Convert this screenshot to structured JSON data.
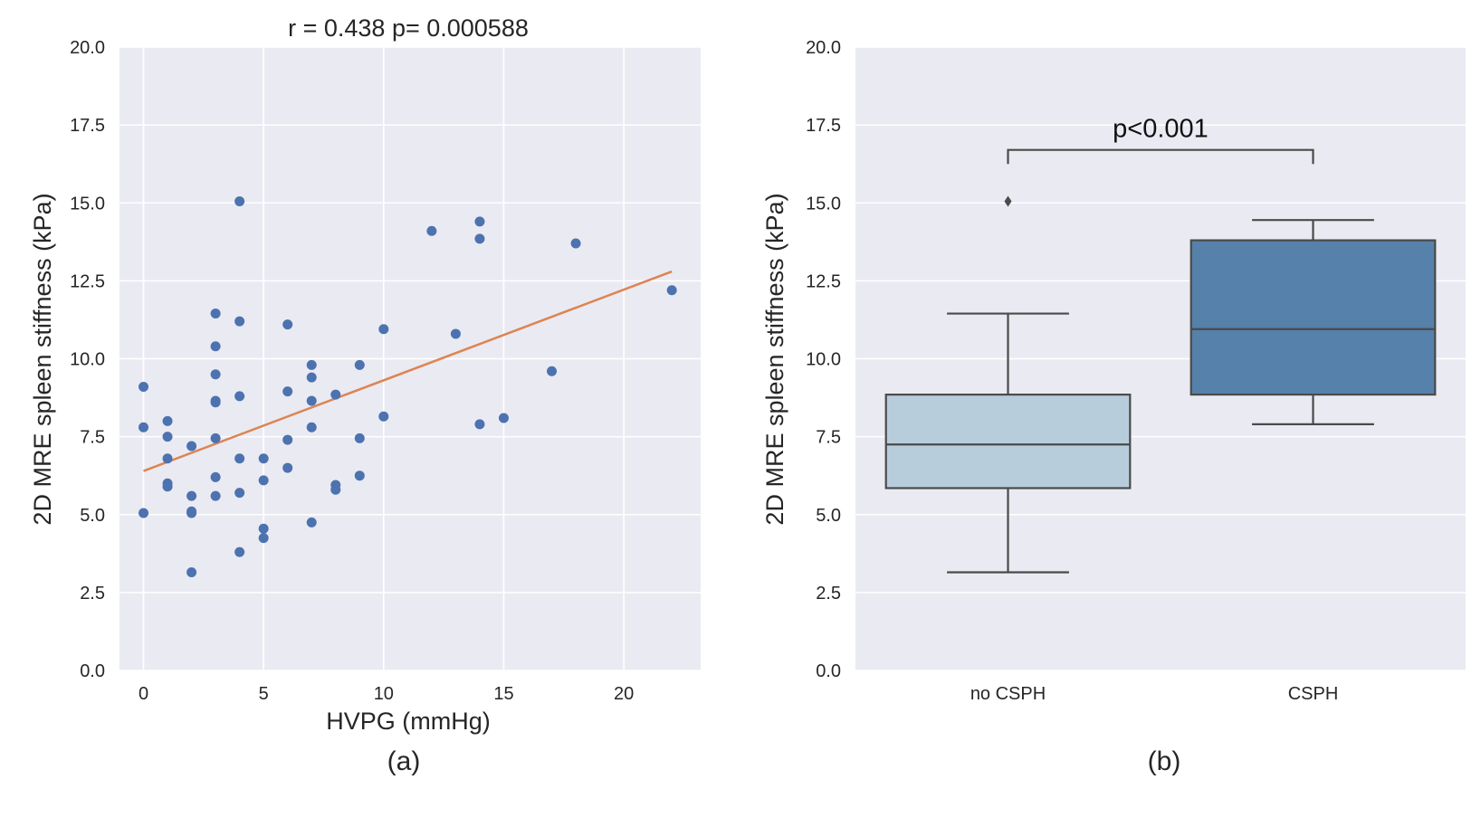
{
  "chart_data": [
    {
      "type": "scatter",
      "panel_label": "(a)",
      "title": "r = 0.438 p= 0.000588",
      "xlabel": "HVPG (mmHg)",
      "ylabel": "2D MRE spleen stiffness (kPa)",
      "xlim": [
        -1,
        23.2
      ],
      "ylim": [
        0,
        20
      ],
      "xticks": [
        0,
        5,
        10,
        15,
        20
      ],
      "xtick_labels": [
        "0",
        "5",
        "10",
        "15",
        "20"
      ],
      "yticks": [
        0,
        2.5,
        5,
        7.5,
        10,
        12.5,
        15,
        17.5,
        20
      ],
      "ytick_labels": [
        "0.0",
        "2.5",
        "5.0",
        "7.5",
        "10.0",
        "12.5",
        "15.0",
        "17.5",
        "20.0"
      ],
      "grid": true,
      "point_color": "#4c72b0",
      "fit_color": "#dd8452",
      "regression_line": {
        "x": [
          0,
          22
        ],
        "y": [
          6.4,
          12.8
        ]
      },
      "points": [
        [
          0,
          9.1
        ],
        [
          0,
          7.8
        ],
        [
          0,
          5.05
        ],
        [
          1,
          8.0
        ],
        [
          1,
          7.5
        ],
        [
          1,
          6.8
        ],
        [
          1,
          6.0
        ],
        [
          1,
          5.9
        ],
        [
          2,
          7.2
        ],
        [
          2,
          5.6
        ],
        [
          2,
          5.1
        ],
        [
          2,
          5.05
        ],
        [
          2,
          3.15
        ],
        [
          3,
          11.45
        ],
        [
          3,
          10.4
        ],
        [
          3,
          9.5
        ],
        [
          3,
          8.65
        ],
        [
          3,
          8.6
        ],
        [
          3,
          7.45
        ],
        [
          3,
          6.2
        ],
        [
          3,
          5.6
        ],
        [
          4,
          15.05
        ],
        [
          4,
          11.2
        ],
        [
          4,
          8.8
        ],
        [
          4,
          6.8
        ],
        [
          4,
          5.7
        ],
        [
          4,
          3.8
        ],
        [
          5,
          6.8
        ],
        [
          5,
          6.1
        ],
        [
          5,
          4.55
        ],
        [
          5,
          4.25
        ],
        [
          6,
          11.1
        ],
        [
          6,
          8.95
        ],
        [
          6,
          7.4
        ],
        [
          6,
          6.5
        ],
        [
          7,
          9.8
        ],
        [
          7,
          9.4
        ],
        [
          7,
          8.65
        ],
        [
          7,
          7.8
        ],
        [
          7,
          4.75
        ],
        [
          8,
          8.85
        ],
        [
          8,
          5.95
        ],
        [
          8,
          5.8
        ],
        [
          9,
          9.8
        ],
        [
          9,
          7.45
        ],
        [
          9,
          6.25
        ],
        [
          10,
          10.95
        ],
        [
          10,
          8.15
        ],
        [
          12,
          14.1
        ],
        [
          13,
          10.8
        ],
        [
          14,
          14.4
        ],
        [
          14,
          13.85
        ],
        [
          14,
          7.9
        ],
        [
          15,
          8.1
        ],
        [
          17,
          9.6
        ],
        [
          18,
          13.7
        ],
        [
          22,
          12.2
        ]
      ]
    },
    {
      "type": "box",
      "panel_label": "(b)",
      "ylabel": "2D MRE spleen stiffness (kPa)",
      "ylim": [
        0,
        20
      ],
      "yticks": [
        0,
        2.5,
        5,
        7.5,
        10,
        12.5,
        15,
        17.5,
        20
      ],
      "ytick_labels": [
        "0.0",
        "2.5",
        "5.0",
        "7.5",
        "10.0",
        "12.5",
        "15.0",
        "17.5",
        "20.0"
      ],
      "grid": true,
      "categories": [
        "no CSPH",
        "CSPH"
      ],
      "boxes": [
        {
          "name": "no CSPH",
          "whisker_low": 3.15,
          "q1": 5.85,
          "median": 7.25,
          "q3": 8.85,
          "whisker_high": 11.45,
          "outliers": [
            15.05
          ],
          "color": "#b8cddc"
        },
        {
          "name": "CSPH",
          "whisker_low": 7.9,
          "q1": 8.85,
          "median": 10.95,
          "q3": 13.8,
          "whisker_high": 14.45,
          "outliers": [],
          "color": "#5581aa"
        }
      ],
      "annotation": {
        "text": "p<0.001",
        "bracket_y": 16.7,
        "bracket_tick_bottom": 16.25
      }
    }
  ],
  "colors": {
    "axes_background": "#eaeaf2",
    "grid": "#ffffff",
    "box_edge": "#4a4a4a"
  }
}
